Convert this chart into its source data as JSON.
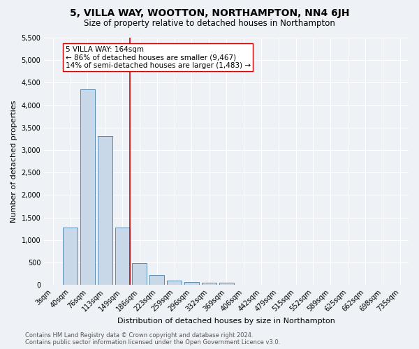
{
  "title": "5, VILLA WAY, WOOTTON, NORTHAMPTON, NN4 6JH",
  "subtitle": "Size of property relative to detached houses in Northampton",
  "xlabel": "Distribution of detached houses by size in Northampton",
  "ylabel": "Number of detached properties",
  "footer_line1": "Contains HM Land Registry data © Crown copyright and database right 2024.",
  "footer_line2": "Contains public sector information licensed under the Open Government Licence v3.0.",
  "bar_labels": [
    "3sqm",
    "40sqm",
    "76sqm",
    "113sqm",
    "149sqm",
    "186sqm",
    "223sqm",
    "259sqm",
    "296sqm",
    "332sqm",
    "369sqm",
    "406sqm",
    "442sqm",
    "479sqm",
    "515sqm",
    "552sqm",
    "589sqm",
    "625sqm",
    "662sqm",
    "698sqm",
    "735sqm"
  ],
  "bar_values": [
    0,
    1270,
    4350,
    3310,
    1270,
    480,
    215,
    95,
    70,
    55,
    55,
    0,
    0,
    0,
    0,
    0,
    0,
    0,
    0,
    0,
    0
  ],
  "bar_color": "#c8d8e8",
  "bar_edge_color": "#5a8ab0",
  "marker_bin": 4,
  "marker_color": "#cc0000",
  "ylim_max": 5500,
  "ytick_step": 500,
  "annotation_title": "5 VILLA WAY: 164sqm",
  "annotation_line1": "← 86% of detached houses are smaller (9,467)",
  "annotation_line2": "14% of semi-detached houses are larger (1,483) →",
  "background_color": "#eef2f7",
  "grid_color": "#ffffff",
  "title_fontsize": 10,
  "subtitle_fontsize": 8.5,
  "tick_fontsize": 7,
  "ylabel_fontsize": 8,
  "xlabel_fontsize": 8,
  "footer_fontsize": 6,
  "annot_fontsize": 7.5
}
